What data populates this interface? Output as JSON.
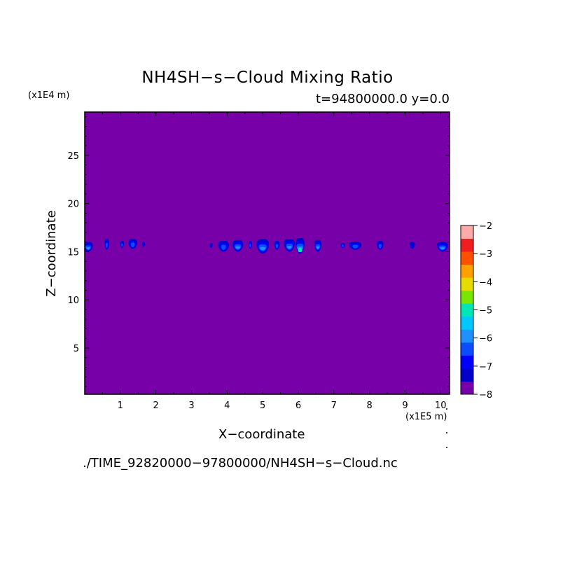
{
  "chart_data": {
    "type": "heatmap",
    "title": "NH4SH−s−Cloud Mixing Ratio",
    "subtitle": "t=94800000.0 y=0.0",
    "xlabel": "X−coordinate",
    "ylabel": "Z−coordinate",
    "x_unit_label": "(x1E5 m)",
    "z_unit_label": "(x1E4 m)",
    "file_label": "./TIME_92820000−97800000/NH4SH−s−Cloud.nc",
    "xlim": [
      0,
      10.25
    ],
    "ylim": [
      0.2,
      29.5
    ],
    "x_ticks": [
      1,
      2,
      3,
      4,
      5,
      6,
      7,
      8,
      9,
      10
    ],
    "x_tick_labels": [
      "1",
      "2",
      "3",
      "4",
      "5",
      "6",
      "7",
      "8",
      "9",
      "10"
    ],
    "y_ticks": [
      5,
      10,
      15,
      20,
      25
    ],
    "y_tick_labels": [
      "5",
      "10",
      "15",
      "20",
      "25"
    ],
    "colorbar": {
      "levels": [
        -8,
        -7.5,
        -7,
        -6.5,
        -6,
        -5.5,
        -5,
        -4.5,
        -4,
        -3.5,
        -3,
        -2.5,
        -2
      ],
      "tick_values": [
        -8,
        -7,
        -6,
        -5,
        -4,
        -3,
        -2
      ],
      "tick_labels": [
        "−8",
        "−7",
        "−6",
        "−5",
        "−4",
        "−3",
        "−2"
      ],
      "colors": [
        "#7800a8",
        "#0000c8",
        "#0000ff",
        "#0a4dff",
        "#1e90ff",
        "#00c8ff",
        "#00e6b4",
        "#78e600",
        "#e6dc00",
        "#ffa000",
        "#ff5000",
        "#f01e1e",
        "#ffaaaa"
      ]
    },
    "background_color": "#7800a8",
    "cloud_layer": {
      "z_range": [
        14.8,
        16.4
      ],
      "clusters": [
        {
          "x": 0.1,
          "width": 0.25,
          "z_top": 16.0,
          "z_bottom": 15.0,
          "max_level": -6.0
        },
        {
          "x": 0.62,
          "width": 0.12,
          "z_top": 16.3,
          "z_bottom": 15.2,
          "max_level": -6.5
        },
        {
          "x": 1.05,
          "width": 0.1,
          "z_top": 16.1,
          "z_bottom": 15.4,
          "max_level": -6.5
        },
        {
          "x": 1.35,
          "width": 0.25,
          "z_top": 16.3,
          "z_bottom": 15.3,
          "max_level": -6.5
        },
        {
          "x": 1.65,
          "width": 0.08,
          "z_top": 16.0,
          "z_bottom": 15.5,
          "max_level": -7.0
        },
        {
          "x": 3.55,
          "width": 0.08,
          "z_top": 15.9,
          "z_bottom": 15.4,
          "max_level": -7.0
        },
        {
          "x": 3.9,
          "width": 0.3,
          "z_top": 16.1,
          "z_bottom": 15.0,
          "max_level": -6.5
        },
        {
          "x": 4.3,
          "width": 0.3,
          "z_top": 16.2,
          "z_bottom": 15.0,
          "max_level": -6.0
        },
        {
          "x": 4.65,
          "width": 0.1,
          "z_top": 16.1,
          "z_bottom": 15.3,
          "max_level": -6.5
        },
        {
          "x": 5.0,
          "width": 0.35,
          "z_top": 16.3,
          "z_bottom": 14.8,
          "max_level": -6.0
        },
        {
          "x": 5.4,
          "width": 0.15,
          "z_top": 16.1,
          "z_bottom": 15.2,
          "max_level": -6.5
        },
        {
          "x": 5.75,
          "width": 0.3,
          "z_top": 16.3,
          "z_bottom": 15.0,
          "max_level": -6.0
        },
        {
          "x": 6.05,
          "width": 0.25,
          "z_top": 16.4,
          "z_bottom": 14.8,
          "max_level": -5.0
        },
        {
          "x": 6.55,
          "width": 0.2,
          "z_top": 16.2,
          "z_bottom": 15.0,
          "max_level": -6.0
        },
        {
          "x": 7.25,
          "width": 0.12,
          "z_top": 15.9,
          "z_bottom": 15.4,
          "max_level": -6.5
        },
        {
          "x": 7.6,
          "width": 0.35,
          "z_top": 16.0,
          "z_bottom": 15.2,
          "max_level": -6.5
        },
        {
          "x": 8.3,
          "width": 0.18,
          "z_top": 16.1,
          "z_bottom": 15.2,
          "max_level": -6.5
        },
        {
          "x": 9.2,
          "width": 0.15,
          "z_top": 16.0,
          "z_bottom": 15.3,
          "max_level": -7.0
        },
        {
          "x": 10.05,
          "width": 0.3,
          "z_top": 16.0,
          "z_bottom": 15.0,
          "max_level": -6.0
        }
      ]
    }
  }
}
